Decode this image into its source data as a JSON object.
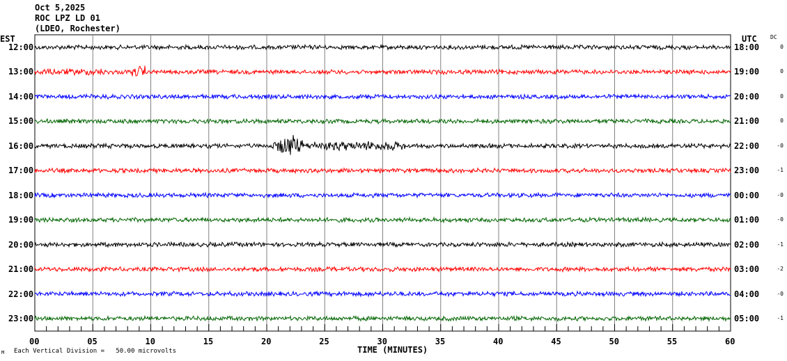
{
  "header": {
    "date": "Oct 5,2025",
    "station": "ROC LPZ LD 01",
    "network": "(LDEO, Rochester)"
  },
  "left_axis_title": "EST",
  "right_axis_title": "UTC",
  "dc_title": "DC",
  "footer": {
    "scale_text": "Each Vertical Division =   50.00 microvolts",
    "mark": "M"
  },
  "chart_data": {
    "type": "line",
    "title": "ROC LPZ LD 01",
    "xlabel": "TIME (MINUTES)",
    "xlim": [
      0,
      60
    ],
    "x_ticks": [
      "00",
      "05",
      "10",
      "15",
      "20",
      "25",
      "30",
      "35",
      "40",
      "45",
      "50",
      "55",
      "60"
    ],
    "grid": true,
    "rows": [
      {
        "est": "12:00",
        "utc": "18:00",
        "dc": "0",
        "color": "#000000"
      },
      {
        "est": "13:00",
        "utc": "19:00",
        "dc": "0",
        "color": "#ff0000"
      },
      {
        "est": "14:00",
        "utc": "20:00",
        "dc": "0",
        "color": "#0000ff"
      },
      {
        "est": "15:00",
        "utc": "21:00",
        "dc": "0",
        "color": "#006400"
      },
      {
        "est": "16:00",
        "utc": "22:00",
        "dc": "-0",
        "color": "#000000"
      },
      {
        "est": "17:00",
        "utc": "23:00",
        "dc": "-1",
        "color": "#ff0000"
      },
      {
        "est": "18:00",
        "utc": "00:00",
        "dc": "-0",
        "color": "#0000ff"
      },
      {
        "est": "19:00",
        "utc": "01:00",
        "dc": "-0",
        "color": "#006400"
      },
      {
        "est": "20:00",
        "utc": "02:00",
        "dc": "-1",
        "color": "#000000"
      },
      {
        "est": "21:00",
        "utc": "03:00",
        "dc": "-2",
        "color": "#ff0000"
      },
      {
        "est": "22:00",
        "utc": "04:00",
        "dc": "-0",
        "color": "#0000ff"
      },
      {
        "est": "23:00",
        "utc": "05:00",
        "dc": "-1",
        "color": "#006400"
      }
    ]
  }
}
